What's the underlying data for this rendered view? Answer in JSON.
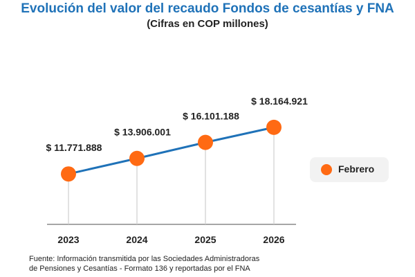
{
  "chart_data": {
    "type": "line",
    "title": "Evolución del valor del recaudo Fondos de cesantías y FNA",
    "subtitle": "(Cifras en COP millones)",
    "categories": [
      "2023",
      "2024",
      "2025",
      "2026"
    ],
    "series": [
      {
        "name": "Febrero",
        "values": [
          11771888,
          13906001,
          16101188,
          18164921
        ],
        "labels": [
          "$ 11.771.888",
          "$ 13.906.001",
          "$ 16.101.188",
          "$ 18.164.921"
        ]
      }
    ],
    "ylim": [
      0,
      21000000
    ],
    "grid": false,
    "legend_position": "right",
    "line_color": "#1f72b8",
    "marker_color": "#ff6a13"
  },
  "source": {
    "line1": "Fuente: Información transmitida por las Sociedades Administradoras",
    "line2": "de Pensiones y Cesantías - Formato 136 y reportadas por el FNA"
  }
}
